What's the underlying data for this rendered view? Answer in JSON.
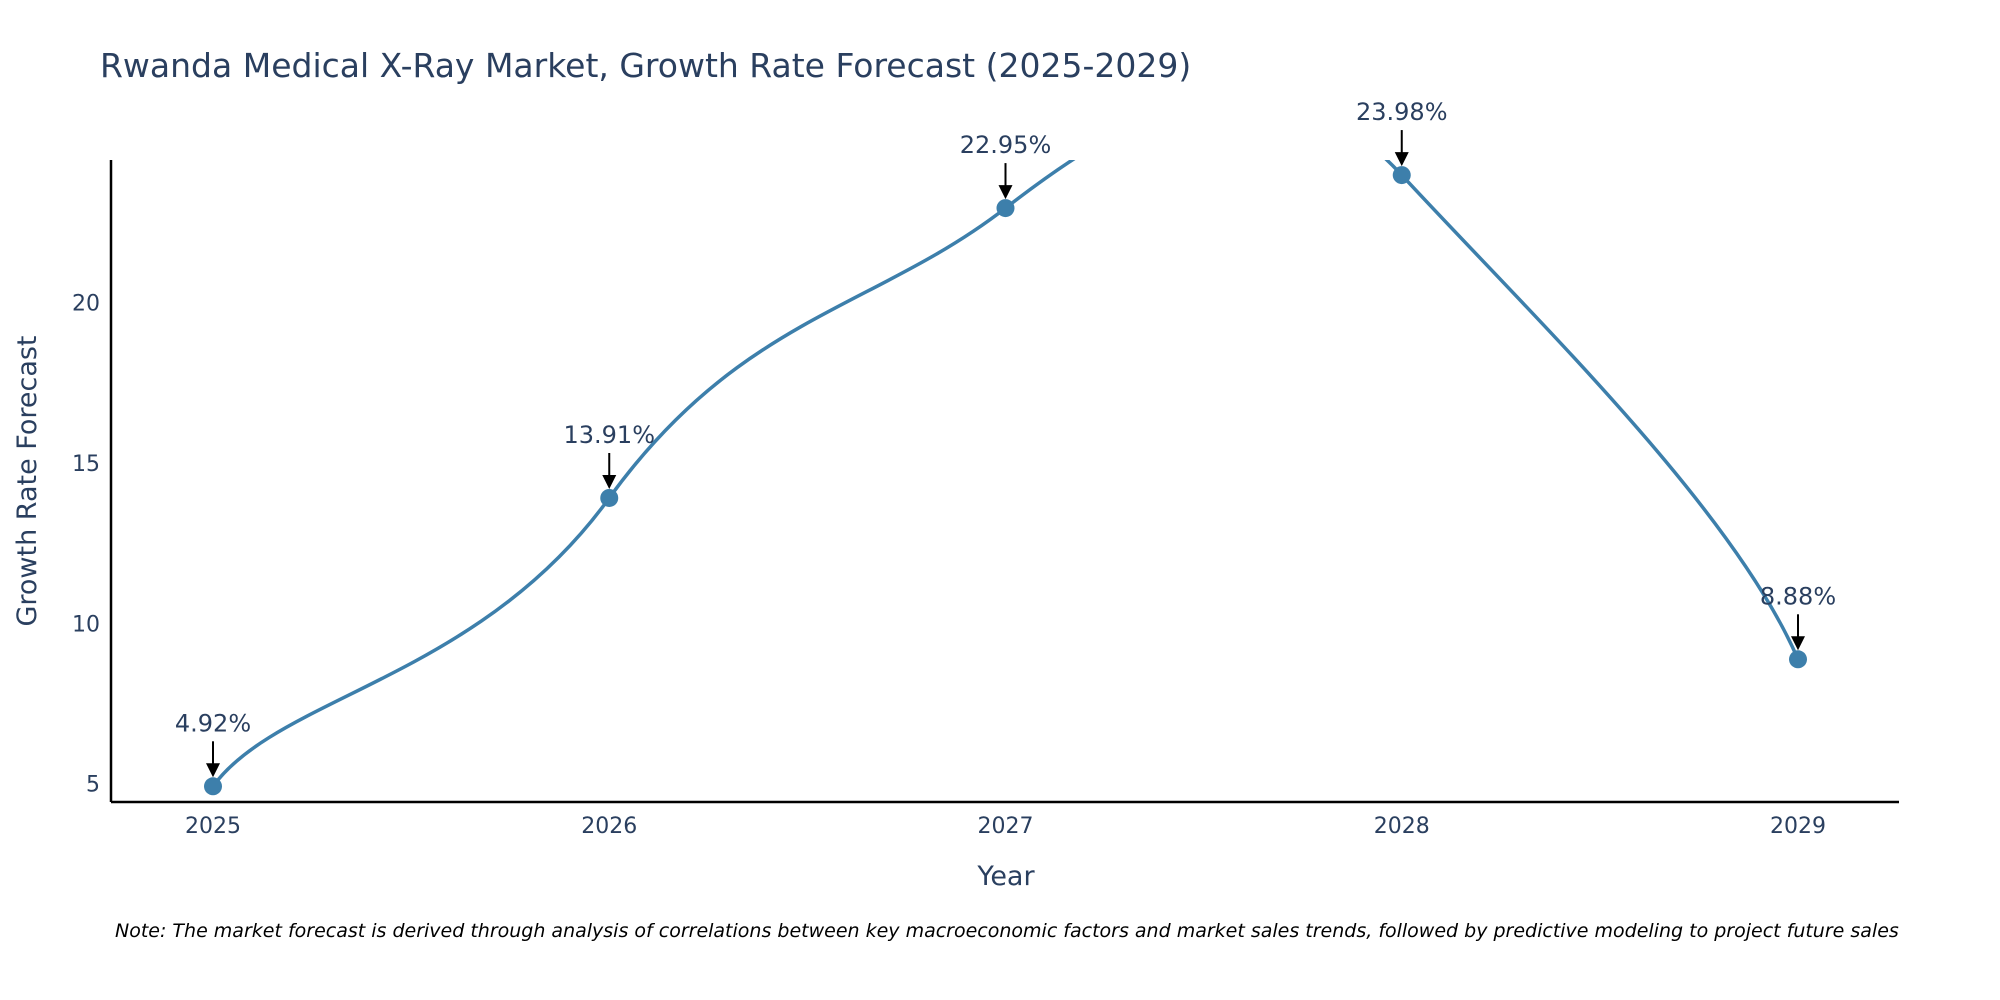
{
  "chart_data": {
    "type": "line",
    "title": "Rwanda Medical X-Ray Market, Growth Rate Forecast (2025-2029)",
    "xlabel": "Year",
    "ylabel": "Growth Rate Forecast",
    "x": [
      "2025",
      "2026",
      "2027",
      "2028",
      "2029"
    ],
    "values": [
      4.92,
      13.91,
      22.95,
      23.98,
      8.88
    ],
    "data_labels": [
      "4.92%",
      "13.91%",
      "22.95%",
      "23.98%",
      "8.88%"
    ],
    "ylim": [
      4.43,
      24.45
    ],
    "yticks": [
      5,
      10,
      15,
      20
    ],
    "grid": false,
    "line_color": "#3d7fab",
    "marker_color": "#3d7fab",
    "note": "Note: The market forecast is derived through analysis of correlations between key macroeconomic factors and market sales trends, followed by predictive modeling to project future sales"
  }
}
